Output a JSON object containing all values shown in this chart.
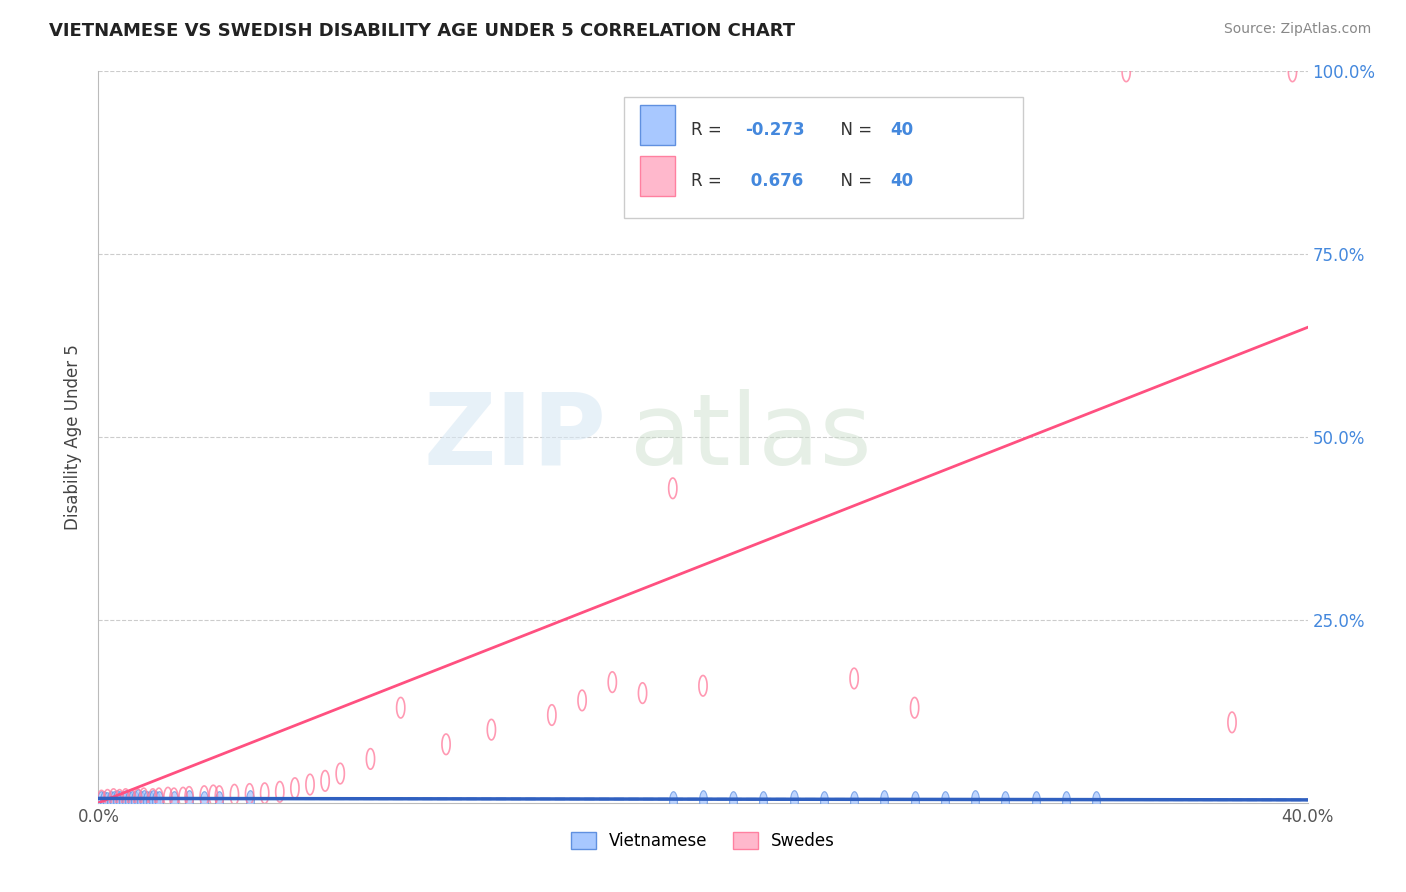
{
  "title": "VIETNAMESE VS SWEDISH DISABILITY AGE UNDER 5 CORRELATION CHART",
  "source": "Source: ZipAtlas.com",
  "ylabel": "Disability Age Under 5",
  "xlim": [
    0,
    0.4
  ],
  "ylim": [
    0,
    1.0
  ],
  "xtick_positions": [
    0.0,
    0.1,
    0.2,
    0.3,
    0.4
  ],
  "xticklabels": [
    "0.0%",
    "",
    "",
    "",
    "40.0%"
  ],
  "ytick_positions": [
    0.0,
    0.25,
    0.5,
    0.75,
    1.0
  ],
  "right_yticklabels": [
    "",
    "25.0%",
    "50.0%",
    "75.0%",
    "100.0%"
  ],
  "viet_color": "#A8C8FF",
  "viet_edge_color": "#6090E0",
  "swede_color": "#FFB8CC",
  "swede_edge_color": "#FF80A0",
  "viet_line_color": "#3060C0",
  "swede_line_color": "#FF5080",
  "grid_color": "#CCCCCC",
  "title_color": "#222222",
  "source_color": "#888888",
  "ylabel_color": "#444444",
  "right_ytick_color": "#4488DD",
  "xtick_color": "#555555",
  "legend_text_color": "#333333",
  "legend_num_color": "#4488DD",
  "swede_line_x0": 0.0,
  "swede_line_y0": 0.0,
  "swede_line_x1": 0.4,
  "swede_line_y1": 0.65,
  "viet_line_x0": 0.0,
  "viet_line_y0": 0.006,
  "viet_line_x1": 0.4,
  "viet_line_y1": 0.004,
  "viet_scatter_x": [
    0.001,
    0.002,
    0.003,
    0.004,
    0.005,
    0.006,
    0.007,
    0.008,
    0.009,
    0.01,
    0.011,
    0.012,
    0.013,
    0.014,
    0.015,
    0.016,
    0.017,
    0.018,
    0.019,
    0.02,
    0.025,
    0.03,
    0.035,
    0.04,
    0.05,
    0.19,
    0.2,
    0.21,
    0.22,
    0.23,
    0.24,
    0.25,
    0.26,
    0.27,
    0.28,
    0.29,
    0.3,
    0.31,
    0.32,
    0.33
  ],
  "viet_scatter_y": [
    0.002,
    0.003,
    0.001,
    0.003,
    0.002,
    0.004,
    0.003,
    0.002,
    0.004,
    0.003,
    0.002,
    0.003,
    0.005,
    0.002,
    0.004,
    0.003,
    0.002,
    0.004,
    0.003,
    0.002,
    0.003,
    0.004,
    0.002,
    0.003,
    0.004,
    0.003,
    0.004,
    0.003,
    0.002,
    0.004,
    0.003,
    0.002,
    0.004,
    0.003,
    0.002,
    0.004,
    0.003,
    0.002,
    0.003,
    0.002
  ],
  "swede_scatter_x": [
    0.001,
    0.003,
    0.005,
    0.007,
    0.009,
    0.011,
    0.013,
    0.015,
    0.018,
    0.02,
    0.023,
    0.025,
    0.028,
    0.03,
    0.035,
    0.038,
    0.04,
    0.045,
    0.05,
    0.055,
    0.06,
    0.065,
    0.07,
    0.075,
    0.08,
    0.09,
    0.1,
    0.115,
    0.13,
    0.15,
    0.16,
    0.17,
    0.18,
    0.19,
    0.2,
    0.25,
    0.27,
    0.34,
    0.375,
    0.395
  ],
  "swede_scatter_y": [
    0.003,
    0.004,
    0.005,
    0.004,
    0.005,
    0.004,
    0.005,
    0.006,
    0.005,
    0.006,
    0.007,
    0.006,
    0.007,
    0.008,
    0.009,
    0.01,
    0.009,
    0.011,
    0.012,
    0.013,
    0.015,
    0.02,
    0.025,
    0.03,
    0.04,
    0.06,
    0.13,
    0.08,
    0.1,
    0.12,
    0.14,
    0.165,
    0.15,
    0.43,
    0.16,
    0.17,
    0.13,
    1.0,
    0.11,
    1.0
  ]
}
